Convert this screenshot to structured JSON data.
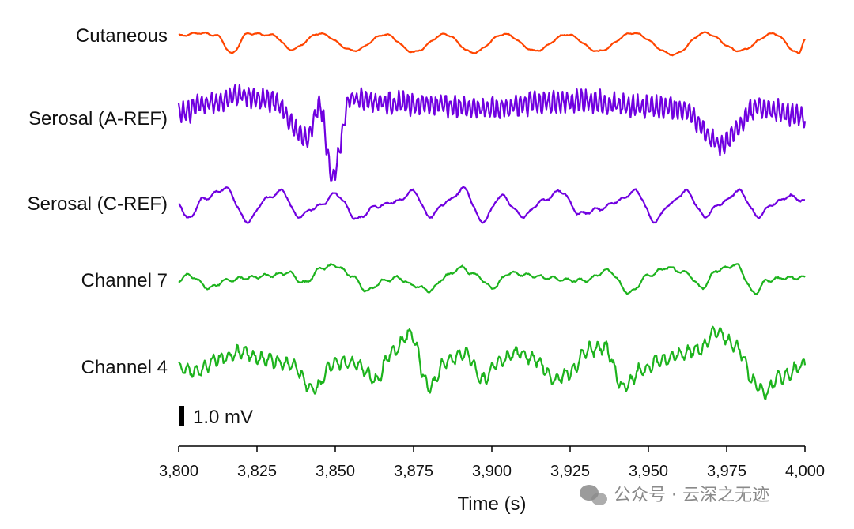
{
  "chart_data": {
    "type": "line",
    "title": "",
    "xlabel": "Time (s)",
    "ylabel": "",
    "xlim": [
      3800,
      4000
    ],
    "x_ticks": [
      3800,
      3825,
      3850,
      3875,
      3900,
      3925,
      3950,
      3975,
      4000
    ],
    "x_tick_labels": [
      "3,800",
      "3,825",
      "3,850",
      "3,875",
      "3,900",
      "3,925",
      "3,950",
      "3,975",
      "4,000"
    ],
    "grid": false,
    "legend": "none",
    "scale_bar": {
      "label": "1.0 mV",
      "value_mV": 1.0
    },
    "series": [
      {
        "name": "Cutaneous",
        "color": "#ff4500",
        "baseline_mV": 0.05,
        "range_mV": [
          -0.75,
          0.12
        ],
        "notes_visible": "sharp downward deflections",
        "spike_times": [
          3817,
          3836,
          3856,
          3875,
          3894,
          3914,
          3934,
          3958,
          3979,
          3998
        ],
        "x": [
          3800,
          3807,
          3812,
          3817,
          3822,
          3830,
          3836,
          3845,
          3856,
          3866,
          3875,
          3885,
          3894,
          3904,
          3914,
          3924,
          3934,
          3945,
          3958,
          3968,
          3979,
          3990,
          3998,
          4000
        ],
        "y": [
          0,
          0.1,
          0.02,
          -0.7,
          0.08,
          0.02,
          -0.55,
          0.08,
          -0.6,
          0.04,
          -0.65,
          0.05,
          -0.68,
          0.06,
          -0.6,
          0.04,
          -0.62,
          0.1,
          -0.75,
          0.1,
          -0.6,
          0.08,
          -0.7,
          -0.15
        ]
      },
      {
        "name": "Serosal (A-REF)",
        "color": "#7000e0",
        "range_mV": [
          -2.3,
          0.9
        ],
        "notes_visible": "fast oscillation with large downward deflections",
        "spike_times": [
          3841,
          3849,
          3973
        ],
        "x": [
          3800,
          3810,
          3820,
          3830,
          3841,
          3845,
          3849,
          3855,
          3870,
          3885,
          3900,
          3915,
          3930,
          3945,
          3960,
          3973,
          3985,
          4000
        ],
        "y": [
          0.2,
          0.6,
          0.9,
          0.7,
          -0.8,
          0.5,
          -2.3,
          0.8,
          0.6,
          0.5,
          0.4,
          0.6,
          0.7,
          0.5,
          0.4,
          -1.0,
          0.4,
          0.1
        ]
      },
      {
        "name": "Serosal (C-REF)",
        "color": "#7000e0",
        "range_mV": [
          -0.8,
          0.6
        ],
        "notes_visible": "slow wave",
        "x": [
          3800,
          3803,
          3808,
          3815,
          3822,
          3828,
          3833,
          3838,
          3845,
          3850,
          3857,
          3863,
          3870,
          3875,
          3880,
          3886,
          3891,
          3897,
          3903,
          3910,
          3916,
          3922,
          3928,
          3935,
          3940,
          3946,
          3952,
          3957,
          3962,
          3968,
          3973,
          3979,
          3985,
          3990,
          3995,
          4000
        ],
        "y": [
          0.0,
          -0.6,
          0.2,
          0.6,
          -0.7,
          0.2,
          0.5,
          -0.5,
          -0.1,
          0.4,
          -0.6,
          -0.1,
          0.1,
          0.5,
          -0.5,
          0.1,
          0.6,
          -0.7,
          0.3,
          -0.5,
          0.1,
          0.5,
          -0.4,
          -0.2,
          0.1,
          0.5,
          -0.7,
          0.0,
          0.5,
          -0.5,
          0.0,
          0.5,
          -0.5,
          0.0,
          0.3,
          0.1
        ]
      },
      {
        "name": "Channel 7",
        "color": "#1db31d",
        "range_mV": [
          -0.5,
          0.6
        ],
        "notes_visible": "slow wave",
        "x": [
          3800,
          3803,
          3810,
          3815,
          3822,
          3830,
          3835,
          3840,
          3846,
          3850,
          3855,
          3860,
          3866,
          3870,
          3875,
          3880,
          3886,
          3890,
          3895,
          3900,
          3906,
          3912,
          3918,
          3925,
          3930,
          3937,
          3944,
          3950,
          3956,
          3962,
          3967,
          3972,
          3978,
          3984,
          3988,
          3994,
          4000
        ],
        "y": [
          0.0,
          0.2,
          -0.3,
          0.0,
          0.1,
          0.2,
          0.3,
          -0.1,
          0.5,
          0.6,
          0.2,
          -0.4,
          0.0,
          0.1,
          -0.2,
          -0.4,
          0.2,
          0.5,
          0.2,
          -0.3,
          0.3,
          0.2,
          0.1,
          0.0,
          0.0,
          0.4,
          -0.5,
          0.2,
          0.5,
          0.3,
          -0.3,
          0.4,
          0.6,
          -0.5,
          0.0,
          0.1,
          0.1
        ]
      },
      {
        "name": "Channel 4",
        "color": "#1db31d",
        "range_mV": [
          -1.0,
          1.4
        ],
        "notes_visible": "fast oscillation on slow wave",
        "x": [
          3800,
          3806,
          3812,
          3820,
          3828,
          3836,
          3843,
          3850,
          3857,
          3863,
          3868,
          3874,
          3880,
          3886,
          3892,
          3897,
          3902,
          3908,
          3914,
          3920,
          3925,
          3931,
          3936,
          3942,
          3948,
          3954,
          3960,
          3966,
          3972,
          3978,
          3984,
          3987,
          3992,
          4000
        ],
        "y": [
          0.0,
          -0.2,
          0.3,
          0.6,
          0.3,
          0.1,
          -0.9,
          0.2,
          0.1,
          -0.5,
          0.6,
          1.3,
          -0.8,
          0.3,
          0.5,
          -0.5,
          0.2,
          0.6,
          0.3,
          -0.5,
          -0.2,
          0.7,
          0.8,
          -0.8,
          -0.1,
          0.3,
          0.5,
          0.7,
          1.4,
          0.8,
          -0.6,
          -1.0,
          -0.4,
          0.1
        ]
      }
    ]
  },
  "watermark": {
    "icon": "wechat-icon",
    "text": "公众号 · 云深之无迹",
    "color": "#8a8a8a"
  }
}
